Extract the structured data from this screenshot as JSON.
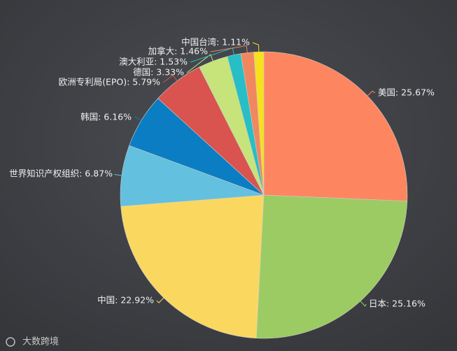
{
  "chart_data": {
    "type": "pie",
    "values": [
      25.67,
      25.16,
      22.92,
      6.87,
      6.16,
      5.79,
      3.33,
      1.53,
      1.46,
      1.11
    ],
    "value_labels": [
      "美国: 25.67%",
      "日本: 25.16%",
      "中国: 22.92%",
      "世界知识产权组织: 6.87%",
      "韩国: 6.16%",
      "欧洲专利局(EPO): 5.79%",
      "德国: 3.33%",
      "澳大利亚: 1.53%",
      "加拿大: 1.46%",
      "中国台湾: 1.11%"
    ],
    "colors": [
      "#fd8660",
      "#9ccb63",
      "#fad860",
      "#63c0df",
      "#0b7dc2",
      "#d9534f",
      "#c6e479",
      "#27bec6",
      "#f1875f",
      "#f6e11c"
    ],
    "watermark": "大数跨境"
  }
}
